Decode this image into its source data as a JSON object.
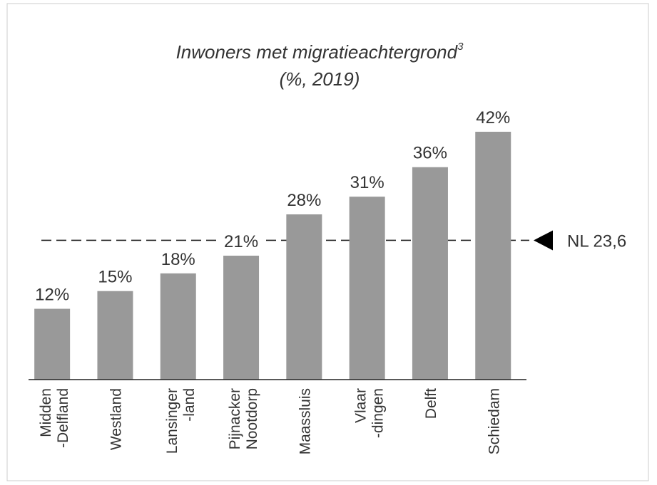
{
  "chart_data": {
    "type": "bar",
    "title": "Inwoners met migratieachtergrond",
    "title_superscript": "3",
    "subtitle": "(%, 2019)",
    "categories": [
      [
        "Midden",
        "-Delfland"
      ],
      [
        "Westland"
      ],
      [
        "Lansinger",
        "-land"
      ],
      [
        "Pijnacker",
        "Nootdorp"
      ],
      [
        "Maassluis"
      ],
      [
        "Vlaar",
        "-dingen"
      ],
      [
        "Delft"
      ],
      [
        "Schiedam"
      ]
    ],
    "values": [
      12,
      15,
      18,
      21,
      28,
      31,
      36,
      42
    ],
    "value_labels": [
      "12%",
      "15%",
      "18%",
      "21%",
      "28%",
      "31%",
      "36%",
      "42%"
    ],
    "color": "#999999",
    "ylim": [
      0,
      42
    ],
    "reference_line": {
      "value": 23.6,
      "label": "NL 23,6"
    }
  }
}
